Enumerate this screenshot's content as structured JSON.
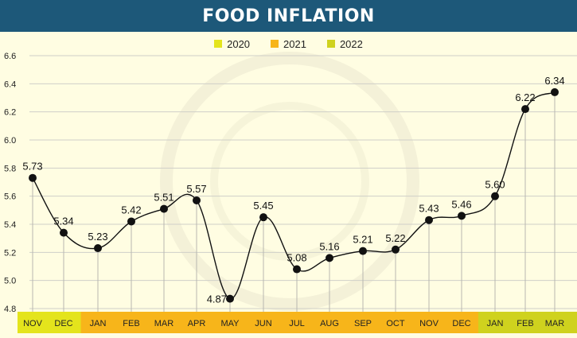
{
  "title": "FOOD INFLATION",
  "legend": [
    {
      "label": "2020",
      "color": "#e4e41c"
    },
    {
      "label": "2021",
      "color": "#f7b51a"
    },
    {
      "label": "2022",
      "color": "#cfd21e"
    }
  ],
  "chart_data": {
    "type": "line",
    "categories": [
      "NOV",
      "DEC",
      "JAN",
      "FEB",
      "MAR",
      "APR",
      "MAY",
      "JUN",
      "JUL",
      "AUG",
      "SEP",
      "OCT",
      "NOV",
      "DEC",
      "JAN",
      "FEB",
      "MAR"
    ],
    "category_years": [
      "2020",
      "2020",
      "2021",
      "2021",
      "2021",
      "2021",
      "2021",
      "2021",
      "2021",
      "2021",
      "2021",
      "2021",
      "2021",
      "2021",
      "2022",
      "2022",
      "2022"
    ],
    "values": [
      5.73,
      5.34,
      5.23,
      5.42,
      5.51,
      5.57,
      4.87,
      5.45,
      5.08,
      5.16,
      5.21,
      5.22,
      5.43,
      5.46,
      5.6,
      6.22,
      6.34
    ],
    "value_labels": [
      "5.73",
      "5.34",
      "5.23",
      "5.42",
      "5.51",
      "5.57",
      "4.87",
      "5.45",
      "5.08",
      "5.16",
      "5.21",
      "5.22",
      "5.43",
      "5.46",
      "5.60",
      "6.22",
      "6.34"
    ],
    "y_ticks": [
      "4.8",
      "5.0",
      "5.2",
      "5.4",
      "5.6",
      "5.8",
      "6.0",
      "6.2",
      "6.4",
      "6.6"
    ],
    "ylim": [
      4.8,
      6.6
    ],
    "grid": true,
    "legend_position": "top-center"
  }
}
